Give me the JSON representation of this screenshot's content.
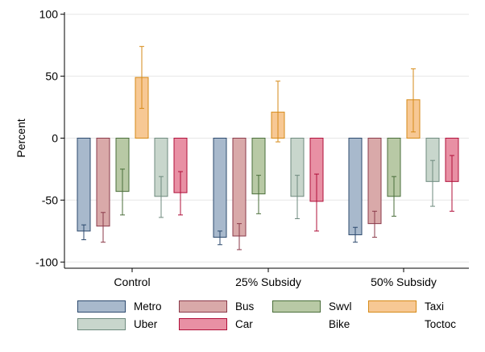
{
  "chart_data": {
    "type": "bar",
    "ylabel": "Percent",
    "xlabel": "",
    "ylim": [
      -105,
      105
    ],
    "yticks": [
      -100,
      -50,
      0,
      50,
      100
    ],
    "grid": true,
    "legend_position": "bottom",
    "categories": [
      "Control",
      "25% Subsidy",
      "50% Subsidy"
    ],
    "series": [
      {
        "name": "Metro",
        "values": [
          -75,
          -80,
          -78
        ],
        "ci": [
          [
            -82,
            -70
          ],
          [
            -86,
            -75
          ],
          [
            -84,
            -72
          ]
        ],
        "fill": "#a8b9cc",
        "stroke": "#2d4a6e"
      },
      {
        "name": "Bus",
        "values": [
          -71,
          -79,
          -69
        ],
        "ci": [
          [
            -84,
            -60
          ],
          [
            -90,
            -69
          ],
          [
            -80,
            -59
          ]
        ],
        "fill": "#d9a9a9",
        "stroke": "#8b3a4a"
      },
      {
        "name": "Swvl",
        "values": [
          -43,
          -45,
          -47
        ],
        "ci": [
          [
            -62,
            -25
          ],
          [
            -61,
            -30
          ],
          [
            -63,
            -31
          ]
        ],
        "fill": "#b8c9a5",
        "stroke": "#4a6e3a"
      },
      {
        "name": "Taxi",
        "values": [
          49,
          21,
          31
        ],
        "ci": [
          [
            24,
            74
          ],
          [
            -3,
            46
          ],
          [
            5,
            56
          ]
        ],
        "fill": "#f7c894",
        "stroke": "#d68a17"
      },
      {
        "name": "Uber",
        "values": [
          -47,
          -47,
          -35
        ],
        "ci": [
          [
            -64,
            -31
          ],
          [
            -65,
            -30
          ],
          [
            -55,
            -18
          ]
        ],
        "fill": "#c8d6cc",
        "stroke": "#6e8a7e"
      },
      {
        "name": "Car",
        "values": [
          -44,
          -51,
          -35
        ],
        "ci": [
          [
            -62,
            -27
          ],
          [
            -75,
            -29
          ],
          [
            -59,
            -14
          ]
        ],
        "fill": "#e890a4",
        "stroke": "#b0103a"
      }
    ]
  },
  "legend": [
    {
      "label": "Metro",
      "fill": "#a8b9cc",
      "stroke": "#2d4a6e"
    },
    {
      "label": "Bus",
      "fill": "#d9a9a9",
      "stroke": "#8b3a4a"
    },
    {
      "label": "Swvl",
      "fill": "#b8c9a5",
      "stroke": "#4a6e3a"
    },
    {
      "label": "Taxi",
      "fill": "#f7c894",
      "stroke": "#d68a17"
    },
    {
      "label": "Uber",
      "fill": "#c8d6cc",
      "stroke": "#6e8a7e"
    },
    {
      "label": "Car",
      "fill": "#e890a4",
      "stroke": "#b0103a"
    },
    {
      "label": "Bike",
      "fill": "",
      "stroke": ""
    },
    {
      "label": "Toctoc",
      "fill": "",
      "stroke": ""
    }
  ]
}
